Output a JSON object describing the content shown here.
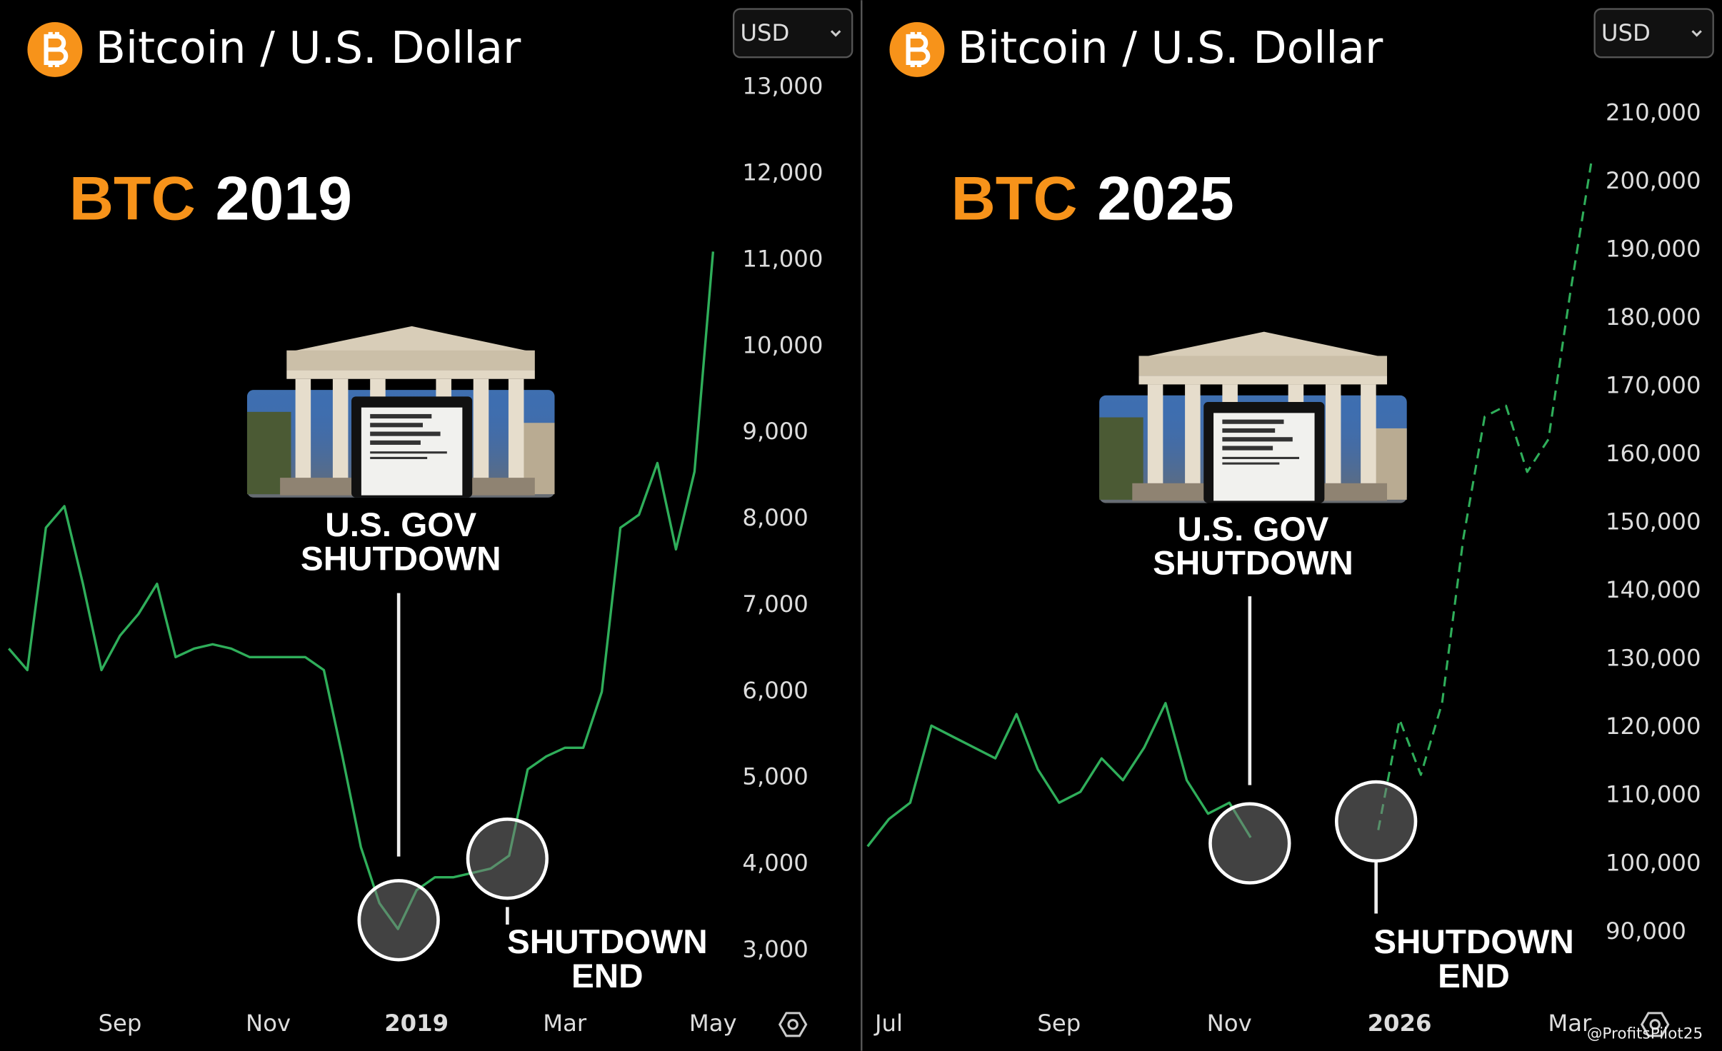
{
  "chart_data": [
    {
      "type": "line",
      "title": "Bitcoin / U.S. Dollar",
      "currency": "USD",
      "headline": [
        "BTC",
        "2019"
      ],
      "annotations": [
        {
          "lines": [
            "U.S. GOV",
            "SHUTDOWN"
          ]
        },
        {
          "lines": [
            "SHUTDOWN",
            "END"
          ]
        }
      ],
      "categories": [
        null,
        null,
        null,
        null,
        null,
        null,
        "Sep",
        null,
        null,
        null,
        null,
        null,
        null,
        null,
        "Nov",
        null,
        null,
        null,
        null,
        null,
        null,
        null,
        "2019",
        null,
        null,
        null,
        null,
        null,
        null,
        null,
        "Mar",
        null,
        null,
        null,
        null,
        null,
        null,
        null,
        "May"
      ],
      "series": [
        {
          "name": "BTC",
          "color": "#2fae5a",
          "dashed": false,
          "values": [
            6500,
            6250,
            7900,
            8150,
            7250,
            6250,
            6650,
            6900,
            7250,
            6400,
            6500,
            6550,
            6500,
            6400,
            6400,
            6400,
            6400,
            6250,
            5250,
            4200,
            3550,
            3250,
            3700,
            3850,
            3850,
            3900,
            3950,
            4100,
            5100,
            5250,
            5350,
            5350,
            6000,
            7900,
            8050,
            8650,
            7650,
            8550,
            11100
          ]
        }
      ],
      "ylim": [
        2500,
        13250
      ],
      "yticks": [
        {
          "value": 3000,
          "label": "3,000"
        },
        {
          "value": 4000,
          "label": "4,000"
        },
        {
          "value": 5000,
          "label": "5,000"
        },
        {
          "value": 6000,
          "label": "6,000"
        },
        {
          "value": 7000,
          "label": "7,000"
        },
        {
          "value": 8000,
          "label": "8,000"
        },
        {
          "value": 9000,
          "label": "9,000"
        },
        {
          "value": 10000,
          "label": "10,000"
        },
        {
          "value": 11000,
          "label": "11,000"
        },
        {
          "value": 12000,
          "label": "12,000"
        },
        {
          "value": 13000,
          "label": "13,000"
        }
      ],
      "grid": false
    },
    {
      "type": "line",
      "title": "Bitcoin / U.S. Dollar",
      "currency": "USD",
      "headline": [
        "BTC",
        "2025"
      ],
      "annotations": [
        {
          "lines": [
            "U.S. GOV",
            "SHUTDOWN"
          ]
        },
        {
          "lines": [
            "SHUTDOWN",
            "END"
          ]
        }
      ],
      "categories": [
        null,
        "Jul",
        null,
        null,
        null,
        null,
        null,
        null,
        null,
        "Sep",
        null,
        null,
        null,
        null,
        null,
        null,
        null,
        "Nov",
        null,
        null,
        null,
        null,
        null,
        null,
        null,
        "2026",
        null,
        null,
        null,
        null,
        null,
        null,
        null,
        "Mar",
        null
      ],
      "series": [
        {
          "name": "BTC",
          "color": "#2fae5a",
          "dashed": false,
          "values": [
            102600,
            106600,
            109000,
            120300,
            118700,
            117100,
            115500,
            122000,
            113900,
            109000,
            110600,
            115500,
            112300,
            117100,
            123600,
            112300,
            107400,
            109000,
            103900,
            null,
            null,
            null,
            null,
            null,
            null,
            null,
            null,
            null,
            null,
            null,
            null,
            null,
            null,
            null,
            null
          ]
        },
        {
          "name": "Projection",
          "color": "#2fae5a",
          "dashed": true,
          "values": [
            null,
            null,
            null,
            null,
            null,
            null,
            null,
            null,
            null,
            null,
            null,
            null,
            null,
            null,
            null,
            null,
            null,
            null,
            null,
            null,
            null,
            null,
            null,
            null,
            105000,
            121200,
            113100,
            123600,
            147800,
            165600,
            167200,
            157500,
            162300,
            183300,
            202700
          ]
        }
      ],
      "ylim": [
        81000,
        217000
      ],
      "yticks": [
        {
          "value": 90000,
          "label": "90,000"
        },
        {
          "value": 100000,
          "label": "100,000"
        },
        {
          "value": 110000,
          "label": "110,000"
        },
        {
          "value": 120000,
          "label": "120,000"
        },
        {
          "value": 130000,
          "label": "130,000"
        },
        {
          "value": 140000,
          "label": "140,000"
        },
        {
          "value": 150000,
          "label": "150,000"
        },
        {
          "value": 160000,
          "label": "160,000"
        },
        {
          "value": 170000,
          "label": "170,000"
        },
        {
          "value": 180000,
          "label": "180,000"
        },
        {
          "value": 190000,
          "label": "190,000"
        },
        {
          "value": 200000,
          "label": "200,000"
        },
        {
          "value": 210000,
          "label": "210,000"
        }
      ],
      "grid": false,
      "watermark": "@ProfitsPilot25"
    }
  ]
}
